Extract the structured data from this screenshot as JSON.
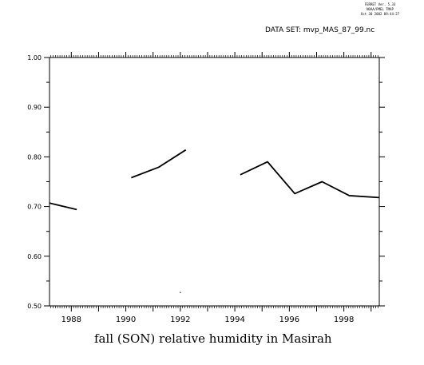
{
  "header": {
    "version_line": "FERRET Ver. 5.33",
    "org_line": "NOAA/PMEL TMAP",
    "date_line": "Oct 30 2002 09:44:27",
    "dataset_label": "DATA SET: mvp_MAS_87_99.nc"
  },
  "chart_data": {
    "type": "line",
    "title": "fall (SON) relative humidity in Masirah",
    "xlabel": "",
    "ylabel": "",
    "xlim": [
      1987.2,
      1999.3
    ],
    "ylim": [
      0.5,
      1.0
    ],
    "x_ticks": [
      1988,
      1990,
      1992,
      1994,
      1996,
      1998
    ],
    "y_ticks": [
      "0.50",
      "0.60",
      "0.70",
      "0.80",
      "0.90",
      "1.00"
    ],
    "series": [
      {
        "segments": [
          [
            [
              1987.2,
              0.707
            ],
            [
              1988.2,
              0.694
            ]
          ],
          [
            [
              1990.2,
              0.758
            ],
            [
              1991.2,
              0.779
            ],
            [
              1992.2,
              0.814
            ]
          ],
          [
            [
              1994.2,
              0.764
            ],
            [
              1995.2,
              0.79
            ],
            [
              1996.2,
              0.726
            ],
            [
              1997.2,
              0.75
            ],
            [
              1998.2,
              0.722
            ],
            [
              1999.3,
              0.718
            ]
          ]
        ],
        "color": "#000000"
      }
    ],
    "isolated_points": [
      [
        1992.0,
        0.527
      ]
    ],
    "grid": false
  }
}
